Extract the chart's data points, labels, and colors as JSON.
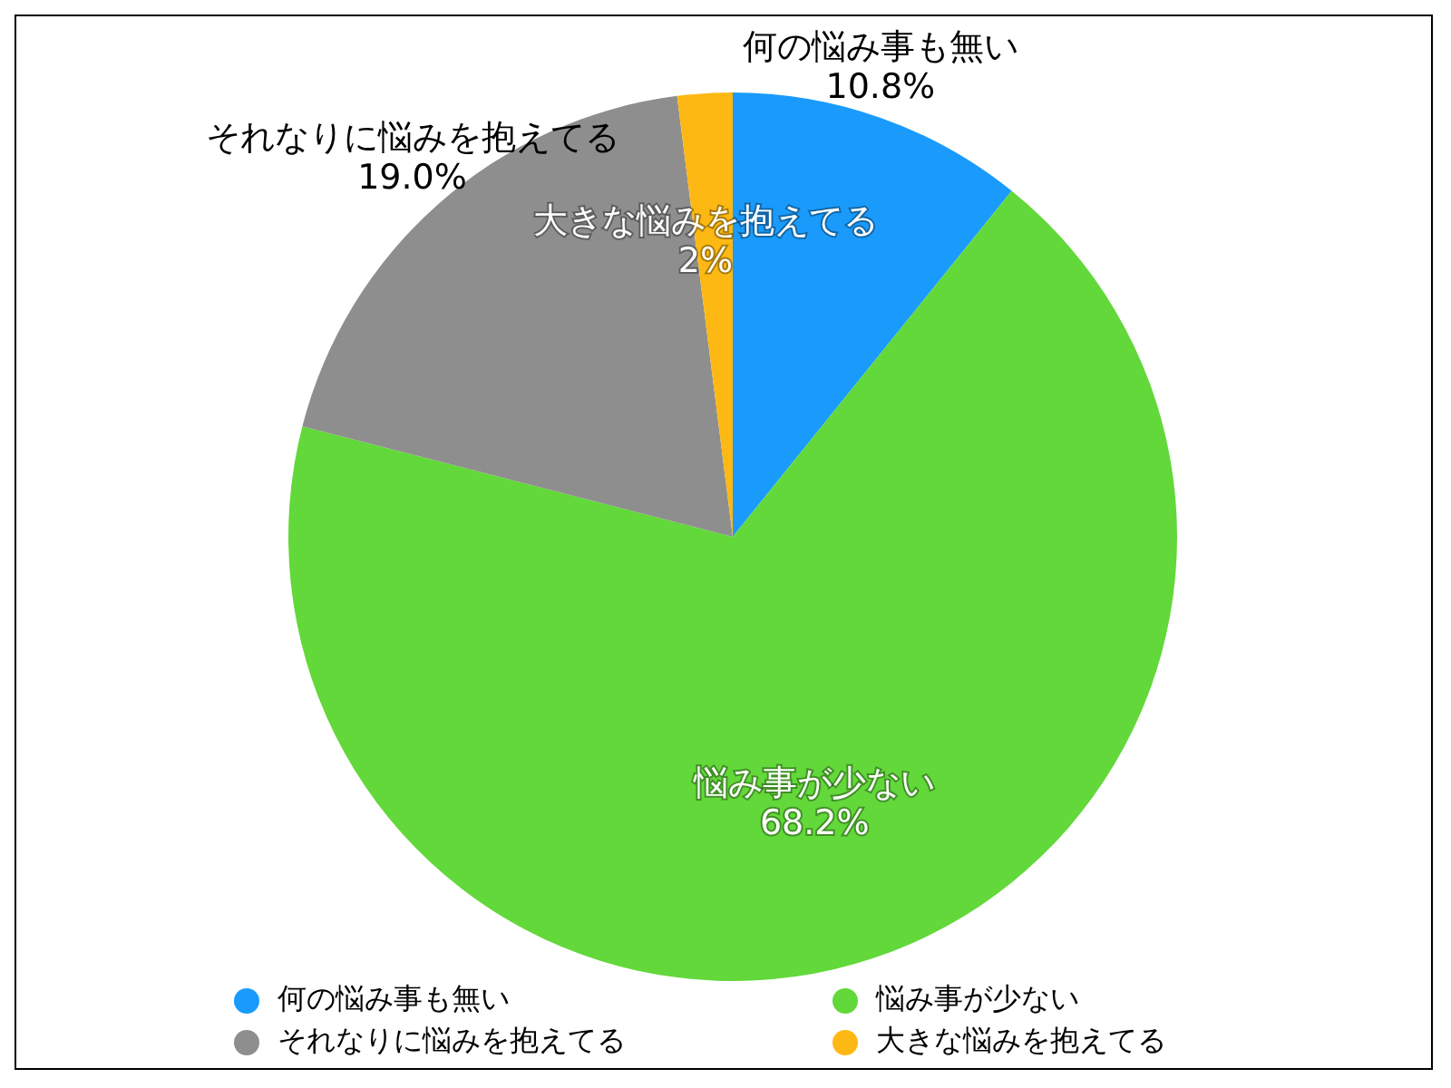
{
  "chart_data": {
    "type": "pie",
    "categories": [
      "何の悩み事も無い",
      "悩み事が少ない",
      "それなりに悩みを抱えてる",
      "大きな悩みを抱えてる"
    ],
    "values": [
      10.8,
      68.2,
      19.0,
      2
    ],
    "value_labels": [
      "10.8%",
      "68.2%",
      "19.0%",
      "2%"
    ],
    "colors": [
      "#1a9bfc",
      "#62d83a",
      "#8e8e8e",
      "#fdb813"
    ],
    "legend": "bottom"
  }
}
